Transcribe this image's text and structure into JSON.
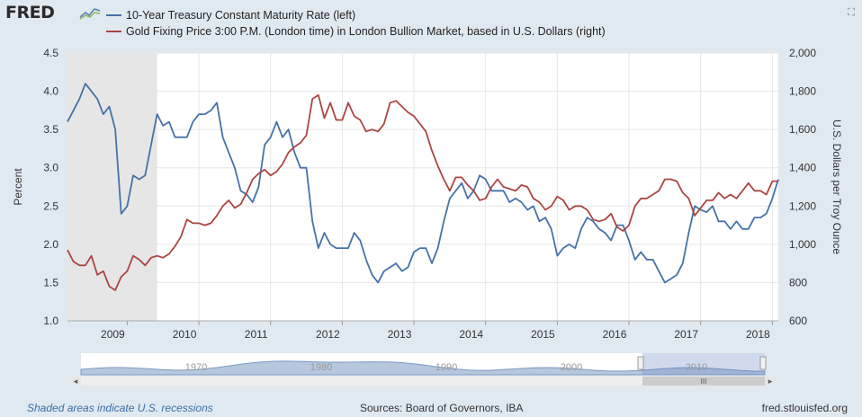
{
  "header": {
    "logo_text": "FRED",
    "logo_icon": "trend-line-icon",
    "expand_icon": "expand-icon"
  },
  "legend": {
    "items": [
      {
        "label": "10-Year Treasury Constant Maturity Rate (left)",
        "color": "#4572a7"
      },
      {
        "label": "Gold Fixing Price 3:00 P.M. (London time) in London Bullion Market, based in U.S. Dollars (right)",
        "color": "#aa4643"
      }
    ]
  },
  "footer": {
    "recession_note": "Shaded areas indicate U.S. recessions",
    "sources": "Sources: Board of Governors, IBA",
    "site": "fred.stlouisfed.org"
  },
  "navigator": {
    "labels": [
      "1970",
      "1980",
      "1990",
      "2000",
      "2010"
    ],
    "scroll_handle_glyph": "III",
    "left_arrow": "◂",
    "right_arrow": "▸"
  },
  "chart_data": {
    "type": "line",
    "x_ticks": [
      "2009",
      "2010",
      "2011",
      "2012",
      "2013",
      "2014",
      "2015",
      "2016",
      "2017",
      "2018"
    ],
    "xlim": [
      "2008-03",
      "2018-02"
    ],
    "recession": [
      "2008-03",
      "2009-06"
    ],
    "y_left": {
      "label": "Percent",
      "ticks": [
        "1.0",
        "1.5",
        "2.0",
        "2.5",
        "3.0",
        "3.5",
        "4.0",
        "4.5"
      ],
      "range": [
        1.0,
        4.5
      ]
    },
    "y_right": {
      "label": "U.S. Dollars per Troy Ounce",
      "ticks": [
        "600",
        "800",
        "1,000",
        "1,200",
        "1,400",
        "1,600",
        "1,800",
        "2,000"
      ],
      "range": [
        600,
        2000
      ]
    },
    "grid": true,
    "series": [
      {
        "name": "10-Year Treasury Constant Maturity Rate (left)",
        "axis": "left",
        "color": "#4572a7",
        "points": [
          [
            "2008-03",
            3.6
          ],
          [
            "2008-04",
            3.75
          ],
          [
            "2008-05",
            3.9
          ],
          [
            "2008-06",
            4.1
          ],
          [
            "2008-07",
            4.0
          ],
          [
            "2008-08",
            3.9
          ],
          [
            "2008-09",
            3.7
          ],
          [
            "2008-10",
            3.8
          ],
          [
            "2008-11",
            3.5
          ],
          [
            "2008-12",
            2.4
          ],
          [
            "2009-01",
            2.5
          ],
          [
            "2009-02",
            2.9
          ],
          [
            "2009-03",
            2.85
          ],
          [
            "2009-04",
            2.9
          ],
          [
            "2009-05",
            3.3
          ],
          [
            "2009-06",
            3.7
          ],
          [
            "2009-07",
            3.55
          ],
          [
            "2009-08",
            3.6
          ],
          [
            "2009-09",
            3.4
          ],
          [
            "2009-10",
            3.4
          ],
          [
            "2009-11",
            3.4
          ],
          [
            "2009-12",
            3.6
          ],
          [
            "2010-01",
            3.7
          ],
          [
            "2010-02",
            3.7
          ],
          [
            "2010-03",
            3.75
          ],
          [
            "2010-04",
            3.85
          ],
          [
            "2010-05",
            3.4
          ],
          [
            "2010-06",
            3.2
          ],
          [
            "2010-07",
            3.0
          ],
          [
            "2010-08",
            2.7
          ],
          [
            "2010-09",
            2.65
          ],
          [
            "2010-10",
            2.55
          ],
          [
            "2010-11",
            2.75
          ],
          [
            "2010-12",
            3.3
          ],
          [
            "2011-01",
            3.4
          ],
          [
            "2011-02",
            3.6
          ],
          [
            "2011-03",
            3.4
          ],
          [
            "2011-04",
            3.5
          ],
          [
            "2011-05",
            3.2
          ],
          [
            "2011-06",
            3.0
          ],
          [
            "2011-07",
            3.0
          ],
          [
            "2011-08",
            2.3
          ],
          [
            "2011-09",
            1.95
          ],
          [
            "2011-10",
            2.15
          ],
          [
            "2011-11",
            2.0
          ],
          [
            "2011-12",
            1.95
          ],
          [
            "2012-01",
            1.95
          ],
          [
            "2012-02",
            1.95
          ],
          [
            "2012-03",
            2.15
          ],
          [
            "2012-04",
            2.05
          ],
          [
            "2012-05",
            1.8
          ],
          [
            "2012-06",
            1.6
          ],
          [
            "2012-07",
            1.5
          ],
          [
            "2012-08",
            1.65
          ],
          [
            "2012-09",
            1.7
          ],
          [
            "2012-10",
            1.75
          ],
          [
            "2012-11",
            1.65
          ],
          [
            "2012-12",
            1.7
          ],
          [
            "2013-01",
            1.9
          ],
          [
            "2013-02",
            1.95
          ],
          [
            "2013-03",
            1.95
          ],
          [
            "2013-04",
            1.75
          ],
          [
            "2013-05",
            1.95
          ],
          [
            "2013-06",
            2.3
          ],
          [
            "2013-07",
            2.6
          ],
          [
            "2013-08",
            2.7
          ],
          [
            "2013-09",
            2.8
          ],
          [
            "2013-10",
            2.6
          ],
          [
            "2013-11",
            2.7
          ],
          [
            "2013-12",
            2.9
          ],
          [
            "2014-01",
            2.85
          ],
          [
            "2014-02",
            2.7
          ],
          [
            "2014-03",
            2.7
          ],
          [
            "2014-04",
            2.7
          ],
          [
            "2014-05",
            2.55
          ],
          [
            "2014-06",
            2.6
          ],
          [
            "2014-07",
            2.55
          ],
          [
            "2014-08",
            2.45
          ],
          [
            "2014-09",
            2.5
          ],
          [
            "2014-10",
            2.3
          ],
          [
            "2014-11",
            2.35
          ],
          [
            "2014-12",
            2.2
          ],
          [
            "2015-01",
            1.85
          ],
          [
            "2015-02",
            1.95
          ],
          [
            "2015-03",
            2.0
          ],
          [
            "2015-04",
            1.95
          ],
          [
            "2015-05",
            2.2
          ],
          [
            "2015-06",
            2.35
          ],
          [
            "2015-07",
            2.3
          ],
          [
            "2015-08",
            2.2
          ],
          [
            "2015-09",
            2.15
          ],
          [
            "2015-10",
            2.05
          ],
          [
            "2015-11",
            2.25
          ],
          [
            "2015-12",
            2.25
          ],
          [
            "2016-01",
            2.05
          ],
          [
            "2016-02",
            1.8
          ],
          [
            "2016-03",
            1.9
          ],
          [
            "2016-04",
            1.8
          ],
          [
            "2016-05",
            1.8
          ],
          [
            "2016-06",
            1.65
          ],
          [
            "2016-07",
            1.5
          ],
          [
            "2016-08",
            1.55
          ],
          [
            "2016-09",
            1.6
          ],
          [
            "2016-10",
            1.75
          ],
          [
            "2016-11",
            2.15
          ],
          [
            "2016-12",
            2.5
          ],
          [
            "2017-01",
            2.45
          ],
          [
            "2017-02",
            2.42
          ],
          [
            "2017-03",
            2.5
          ],
          [
            "2017-04",
            2.3
          ],
          [
            "2017-05",
            2.3
          ],
          [
            "2017-06",
            2.2
          ],
          [
            "2017-07",
            2.3
          ],
          [
            "2017-08",
            2.2
          ],
          [
            "2017-09",
            2.2
          ],
          [
            "2017-10",
            2.35
          ],
          [
            "2017-11",
            2.35
          ],
          [
            "2017-12",
            2.4
          ],
          [
            "2018-01",
            2.6
          ],
          [
            "2018-02",
            2.85
          ]
        ]
      },
      {
        "name": "Gold Fixing Price 3:00 P.M. (London time) in London Bullion Market, based in U.S. Dollars (right)",
        "axis": "right",
        "color": "#aa4643",
        "points": [
          [
            "2008-03",
            970
          ],
          [
            "2008-04",
            910
          ],
          [
            "2008-05",
            890
          ],
          [
            "2008-06",
            890
          ],
          [
            "2008-07",
            940
          ],
          [
            "2008-08",
            840
          ],
          [
            "2008-09",
            860
          ],
          [
            "2008-10",
            780
          ],
          [
            "2008-11",
            760
          ],
          [
            "2008-12",
            830
          ],
          [
            "2009-01",
            860
          ],
          [
            "2009-02",
            940
          ],
          [
            "2009-03",
            920
          ],
          [
            "2009-04",
            890
          ],
          [
            "2009-05",
            930
          ],
          [
            "2009-06",
            940
          ],
          [
            "2009-07",
            930
          ],
          [
            "2009-08",
            950
          ],
          [
            "2009-09",
            990
          ],
          [
            "2009-10",
            1040
          ],
          [
            "2009-11",
            1130
          ],
          [
            "2009-12",
            1110
          ],
          [
            "2010-01",
            1110
          ],
          [
            "2010-02",
            1100
          ],
          [
            "2010-03",
            1110
          ],
          [
            "2010-04",
            1150
          ],
          [
            "2010-05",
            1200
          ],
          [
            "2010-06",
            1230
          ],
          [
            "2010-07",
            1190
          ],
          [
            "2010-08",
            1210
          ],
          [
            "2010-09",
            1270
          ],
          [
            "2010-10",
            1340
          ],
          [
            "2010-11",
            1370
          ],
          [
            "2010-12",
            1390
          ],
          [
            "2011-01",
            1360
          ],
          [
            "2011-02",
            1380
          ],
          [
            "2011-03",
            1420
          ],
          [
            "2011-04",
            1480
          ],
          [
            "2011-05",
            1510
          ],
          [
            "2011-06",
            1530
          ],
          [
            "2011-07",
            1570
          ],
          [
            "2011-08",
            1760
          ],
          [
            "2011-09",
            1780
          ],
          [
            "2011-10",
            1660
          ],
          [
            "2011-11",
            1740
          ],
          [
            "2011-12",
            1650
          ],
          [
            "2012-01",
            1650
          ],
          [
            "2012-02",
            1740
          ],
          [
            "2012-03",
            1670
          ],
          [
            "2012-04",
            1650
          ],
          [
            "2012-05",
            1590
          ],
          [
            "2012-06",
            1600
          ],
          [
            "2012-07",
            1590
          ],
          [
            "2012-08",
            1630
          ],
          [
            "2012-09",
            1740
          ],
          [
            "2012-10",
            1750
          ],
          [
            "2012-11",
            1720
          ],
          [
            "2012-12",
            1690
          ],
          [
            "2013-01",
            1670
          ],
          [
            "2013-02",
            1630
          ],
          [
            "2013-03",
            1590
          ],
          [
            "2013-04",
            1490
          ],
          [
            "2013-05",
            1410
          ],
          [
            "2013-06",
            1340
          ],
          [
            "2013-07",
            1280
          ],
          [
            "2013-08",
            1350
          ],
          [
            "2013-09",
            1350
          ],
          [
            "2013-10",
            1310
          ],
          [
            "2013-11",
            1280
          ],
          [
            "2013-12",
            1230
          ],
          [
            "2014-01",
            1240
          ],
          [
            "2014-02",
            1300
          ],
          [
            "2014-03",
            1340
          ],
          [
            "2014-04",
            1300
          ],
          [
            "2014-05",
            1290
          ],
          [
            "2014-06",
            1280
          ],
          [
            "2014-07",
            1310
          ],
          [
            "2014-08",
            1300
          ],
          [
            "2014-09",
            1240
          ],
          [
            "2014-10",
            1220
          ],
          [
            "2014-11",
            1180
          ],
          [
            "2014-12",
            1200
          ],
          [
            "2015-01",
            1250
          ],
          [
            "2015-02",
            1230
          ],
          [
            "2015-03",
            1180
          ],
          [
            "2015-04",
            1200
          ],
          [
            "2015-05",
            1200
          ],
          [
            "2015-06",
            1180
          ],
          [
            "2015-07",
            1130
          ],
          [
            "2015-08",
            1120
          ],
          [
            "2015-09",
            1130
          ],
          [
            "2015-10",
            1160
          ],
          [
            "2015-11",
            1090
          ],
          [
            "2015-12",
            1070
          ],
          [
            "2016-01",
            1100
          ],
          [
            "2016-02",
            1200
          ],
          [
            "2016-03",
            1240
          ],
          [
            "2016-04",
            1240
          ],
          [
            "2016-05",
            1260
          ],
          [
            "2016-06",
            1280
          ],
          [
            "2016-07",
            1340
          ],
          [
            "2016-08",
            1340
          ],
          [
            "2016-09",
            1330
          ],
          [
            "2016-10",
            1270
          ],
          [
            "2016-11",
            1240
          ],
          [
            "2016-12",
            1150
          ],
          [
            "2017-01",
            1190
          ],
          [
            "2017-02",
            1230
          ],
          [
            "2017-03",
            1230
          ],
          [
            "2017-04",
            1270
          ],
          [
            "2017-05",
            1240
          ],
          [
            "2017-06",
            1260
          ],
          [
            "2017-07",
            1240
          ],
          [
            "2017-08",
            1280
          ],
          [
            "2017-09",
            1320
          ],
          [
            "2017-10",
            1280
          ],
          [
            "2017-11",
            1280
          ],
          [
            "2017-12",
            1260
          ],
          [
            "2018-01",
            1330
          ],
          [
            "2018-02",
            1330
          ]
        ]
      }
    ]
  }
}
